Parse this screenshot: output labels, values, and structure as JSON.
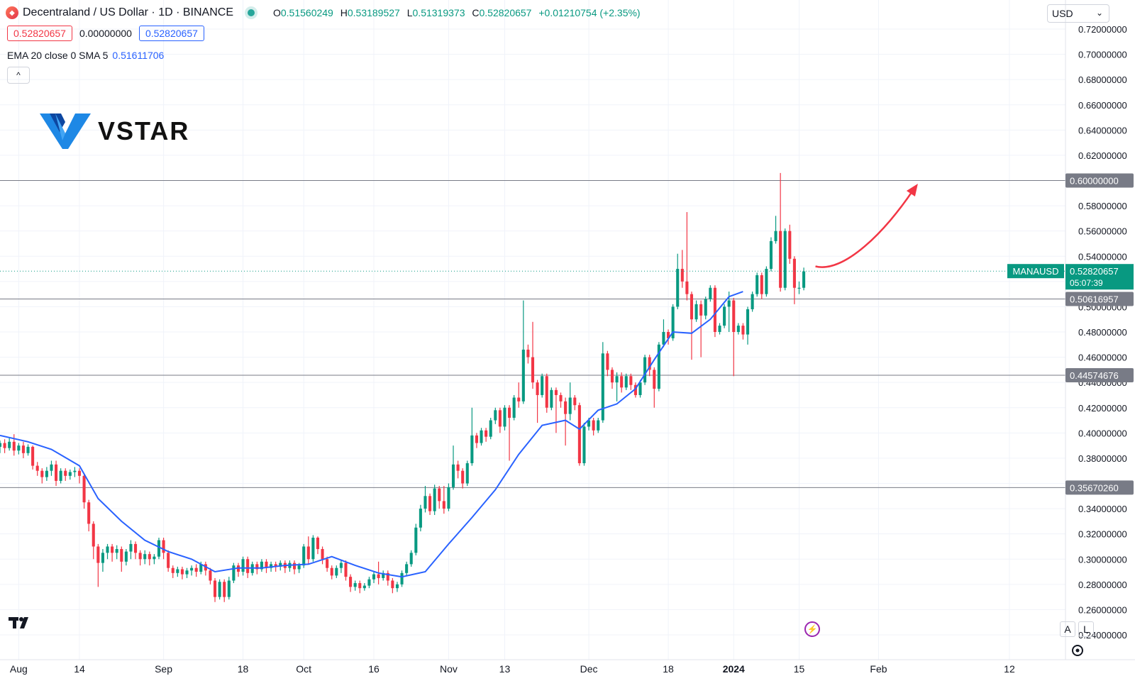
{
  "header": {
    "symbol_title": "Decentraland / US Dollar · 1D · BINANCE",
    "open_label": "O",
    "open": "0.51560249",
    "high_label": "H",
    "high": "0.53189527",
    "low_label": "L",
    "low": "0.51319373",
    "close_label": "C",
    "close": "0.52820657",
    "change": "+0.01210754 (+2.35%)",
    "bid": "0.52820657",
    "spread": "0.00000000",
    "ask": "0.52820657",
    "indicator_label": "EMA 20 close 0 SMA 5",
    "indicator_value": "0.51611706",
    "collapse_glyph": "^"
  },
  "logo": {
    "text": "VSTAR"
  },
  "currency_select": {
    "value": "USD"
  },
  "price_tag": {
    "symbol": "MANAUSD",
    "price": "0.52820657",
    "countdown": "05:07:39"
  },
  "scale_buttons": {
    "auto": "A",
    "log": "L"
  },
  "colors": {
    "up": "#089981",
    "down": "#f23645",
    "ema": "#2962ff",
    "level_line": "#787b86",
    "arrow": "#f23645"
  },
  "chart_data": {
    "type": "candlestick",
    "interval": "1D",
    "y_ticks": [
      "0.72000000",
      "0.70000000",
      "0.68000000",
      "0.66000000",
      "0.64000000",
      "0.62000000",
      "0.60000000",
      "0.58000000",
      "0.56000000",
      "0.54000000",
      "0.52000000",
      "0.50000000",
      "0.48000000",
      "0.46000000",
      "0.44000000",
      "0.42000000",
      "0.40000000",
      "0.38000000",
      "0.36000000",
      "0.34000000",
      "0.32000000",
      "0.30000000",
      "0.28000000",
      "0.26000000",
      "0.24000000"
    ],
    "ylim": [
      0.234,
      0.723
    ],
    "x_ticks": [
      {
        "label": "Aug",
        "day": -2
      },
      {
        "label": "14",
        "day": 11
      },
      {
        "label": "Sep",
        "day": 29
      },
      {
        "label": "18",
        "day": 46
      },
      {
        "label": "Oct",
        "day": 59
      },
      {
        "label": "16",
        "day": 74
      },
      {
        "label": "Nov",
        "day": 90
      },
      {
        "label": "13",
        "day": 102
      },
      {
        "label": "Dec",
        "day": 120
      },
      {
        "label": "18",
        "day": 137
      },
      {
        "label": "2024",
        "day": 151
      },
      {
        "label": "15",
        "day": 165
      },
      {
        "label": "Feb",
        "day": 182
      },
      {
        "label": "12",
        "day": 210
      }
    ],
    "xlim": [
      -6,
      222
    ],
    "horizontal_levels": [
      "0.60000000",
      "0.50616957",
      "0.44574676",
      "0.35670260"
    ],
    "ema_20": [
      [
        -6,
        0.398
      ],
      [
        0,
        0.393
      ],
      [
        5,
        0.387
      ],
      [
        11,
        0.374
      ],
      [
        15,
        0.348
      ],
      [
        20,
        0.33
      ],
      [
        25,
        0.315
      ],
      [
        30,
        0.306
      ],
      [
        35,
        0.3
      ],
      [
        40,
        0.29
      ],
      [
        45,
        0.293
      ],
      [
        50,
        0.293
      ],
      [
        55,
        0.295
      ],
      [
        60,
        0.296
      ],
      [
        65,
        0.302
      ],
      [
        70,
        0.295
      ],
      [
        75,
        0.289
      ],
      [
        80,
        0.286
      ],
      [
        85,
        0.29
      ],
      [
        90,
        0.312
      ],
      [
        95,
        0.333
      ],
      [
        100,
        0.355
      ],
      [
        105,
        0.383
      ],
      [
        110,
        0.406
      ],
      [
        115,
        0.41
      ],
      [
        118,
        0.403
      ],
      [
        122,
        0.418
      ],
      [
        126,
        0.423
      ],
      [
        130,
        0.435
      ],
      [
        134,
        0.458
      ],
      [
        138,
        0.48
      ],
      [
        142,
        0.479
      ],
      [
        146,
        0.49
      ],
      [
        150,
        0.508
      ],
      [
        153,
        0.512
      ]
    ],
    "candles": [
      [
        -6,
        0.389,
        0.392,
        0.384,
        0.394
      ],
      [
        -5,
        0.392,
        0.388,
        0.384,
        0.395
      ],
      [
        -4,
        0.388,
        0.393,
        0.386,
        0.396
      ],
      [
        -3,
        0.393,
        0.386,
        0.382,
        0.399
      ],
      [
        -2,
        0.386,
        0.39,
        0.383,
        0.392
      ],
      [
        -1,
        0.39,
        0.384,
        0.38,
        0.393
      ],
      [
        0,
        0.384,
        0.389,
        0.382,
        0.391
      ],
      [
        1,
        0.389,
        0.374,
        0.371,
        0.39
      ],
      [
        2,
        0.374,
        0.37,
        0.366,
        0.377
      ],
      [
        3,
        0.37,
        0.365,
        0.36,
        0.372
      ],
      [
        4,
        0.365,
        0.37,
        0.362,
        0.373
      ],
      [
        5,
        0.37,
        0.375,
        0.366,
        0.378
      ],
      [
        6,
        0.375,
        0.362,
        0.358,
        0.378
      ],
      [
        7,
        0.362,
        0.37,
        0.36,
        0.372
      ],
      [
        8,
        0.37,
        0.366,
        0.362,
        0.372
      ],
      [
        9,
        0.366,
        0.369,
        0.363,
        0.371
      ],
      [
        10,
        0.369,
        0.37,
        0.365,
        0.373
      ],
      [
        11,
        0.37,
        0.366,
        0.36,
        0.372
      ],
      [
        12,
        0.366,
        0.345,
        0.34,
        0.368
      ],
      [
        13,
        0.345,
        0.328,
        0.322,
        0.347
      ],
      [
        14,
        0.328,
        0.31,
        0.3,
        0.33
      ],
      [
        15,
        0.31,
        0.297,
        0.278,
        0.312
      ],
      [
        16,
        0.297,
        0.305,
        0.29,
        0.308
      ],
      [
        17,
        0.305,
        0.31,
        0.3,
        0.312
      ],
      [
        18,
        0.31,
        0.305,
        0.298,
        0.312
      ],
      [
        19,
        0.305,
        0.308,
        0.3,
        0.311
      ],
      [
        20,
        0.308,
        0.298,
        0.29,
        0.31
      ],
      [
        21,
        0.298,
        0.306,
        0.295,
        0.308
      ],
      [
        22,
        0.306,
        0.312,
        0.3,
        0.315
      ],
      [
        23,
        0.312,
        0.305,
        0.3,
        0.314
      ],
      [
        24,
        0.305,
        0.3,
        0.295,
        0.307
      ],
      [
        25,
        0.3,
        0.304,
        0.296,
        0.307
      ],
      [
        26,
        0.304,
        0.3,
        0.295,
        0.306
      ],
      [
        27,
        0.3,
        0.302,
        0.296,
        0.304
      ],
      [
        28,
        0.302,
        0.315,
        0.3,
        0.317
      ],
      [
        29,
        0.315,
        0.305,
        0.3,
        0.317
      ],
      [
        30,
        0.305,
        0.293,
        0.29,
        0.307
      ],
      [
        31,
        0.293,
        0.289,
        0.285,
        0.295
      ],
      [
        32,
        0.289,
        0.292,
        0.286,
        0.294
      ],
      [
        33,
        0.292,
        0.288,
        0.284,
        0.294
      ],
      [
        34,
        0.288,
        0.291,
        0.285,
        0.293
      ],
      [
        35,
        0.291,
        0.293,
        0.287,
        0.295
      ],
      [
        36,
        0.293,
        0.29,
        0.286,
        0.296
      ],
      [
        37,
        0.29,
        0.296,
        0.288,
        0.298
      ],
      [
        38,
        0.296,
        0.291,
        0.287,
        0.298
      ],
      [
        39,
        0.291,
        0.283,
        0.28,
        0.293
      ],
      [
        40,
        0.283,
        0.27,
        0.266,
        0.285
      ],
      [
        41,
        0.27,
        0.282,
        0.268,
        0.284
      ],
      [
        42,
        0.282,
        0.27,
        0.266,
        0.284
      ],
      [
        43,
        0.27,
        0.283,
        0.268,
        0.286
      ],
      [
        44,
        0.283,
        0.295,
        0.281,
        0.297
      ],
      [
        45,
        0.295,
        0.29,
        0.286,
        0.297
      ],
      [
        46,
        0.29,
        0.3,
        0.287,
        0.302
      ],
      [
        47,
        0.3,
        0.289,
        0.285,
        0.302
      ],
      [
        48,
        0.289,
        0.296,
        0.287,
        0.298
      ],
      [
        49,
        0.296,
        0.292,
        0.288,
        0.298
      ],
      [
        50,
        0.292,
        0.298,
        0.29,
        0.3
      ],
      [
        51,
        0.298,
        0.293,
        0.289,
        0.3
      ],
      [
        52,
        0.293,
        0.296,
        0.29,
        0.298
      ],
      [
        53,
        0.296,
        0.294,
        0.29,
        0.298
      ],
      [
        54,
        0.294,
        0.297,
        0.291,
        0.299
      ],
      [
        55,
        0.297,
        0.293,
        0.289,
        0.299
      ],
      [
        56,
        0.293,
        0.297,
        0.29,
        0.299
      ],
      [
        57,
        0.297,
        0.292,
        0.288,
        0.299
      ],
      [
        58,
        0.292,
        0.295,
        0.289,
        0.297
      ],
      [
        59,
        0.295,
        0.31,
        0.293,
        0.312
      ],
      [
        60,
        0.31,
        0.3,
        0.296,
        0.318
      ],
      [
        61,
        0.3,
        0.317,
        0.298,
        0.319
      ],
      [
        62,
        0.317,
        0.308,
        0.304,
        0.318
      ],
      [
        63,
        0.308,
        0.3,
        0.296,
        0.31
      ],
      [
        64,
        0.3,
        0.293,
        0.29,
        0.302
      ],
      [
        65,
        0.293,
        0.287,
        0.284,
        0.295
      ],
      [
        66,
        0.287,
        0.293,
        0.285,
        0.295
      ],
      [
        67,
        0.293,
        0.297,
        0.289,
        0.299
      ],
      [
        68,
        0.297,
        0.286,
        0.283,
        0.299
      ],
      [
        69,
        0.286,
        0.278,
        0.274,
        0.288
      ],
      [
        70,
        0.278,
        0.281,
        0.275,
        0.283
      ],
      [
        71,
        0.281,
        0.277,
        0.273,
        0.283
      ],
      [
        72,
        0.277,
        0.279,
        0.275,
        0.281
      ],
      [
        73,
        0.279,
        0.284,
        0.277,
        0.286
      ],
      [
        74,
        0.284,
        0.288,
        0.281,
        0.29
      ],
      [
        75,
        0.288,
        0.285,
        0.28,
        0.298
      ],
      [
        76,
        0.285,
        0.289,
        0.283,
        0.291
      ],
      [
        77,
        0.289,
        0.283,
        0.279,
        0.291
      ],
      [
        78,
        0.283,
        0.277,
        0.273,
        0.285
      ],
      [
        79,
        0.277,
        0.28,
        0.274,
        0.282
      ],
      [
        80,
        0.28,
        0.289,
        0.278,
        0.291
      ],
      [
        81,
        0.289,
        0.296,
        0.287,
        0.298
      ],
      [
        82,
        0.296,
        0.305,
        0.294,
        0.307
      ],
      [
        83,
        0.305,
        0.325,
        0.303,
        0.328
      ],
      [
        84,
        0.325,
        0.34,
        0.322,
        0.343
      ],
      [
        85,
        0.34,
        0.35,
        0.337,
        0.358
      ],
      [
        86,
        0.35,
        0.338,
        0.335,
        0.352
      ],
      [
        87,
        0.338,
        0.356,
        0.335,
        0.359
      ],
      [
        88,
        0.356,
        0.346,
        0.34,
        0.358
      ],
      [
        89,
        0.346,
        0.34,
        0.336,
        0.358
      ],
      [
        90,
        0.34,
        0.357,
        0.338,
        0.36
      ],
      [
        91,
        0.357,
        0.375,
        0.355,
        0.39
      ],
      [
        92,
        0.375,
        0.37,
        0.364,
        0.378
      ],
      [
        93,
        0.37,
        0.36,
        0.356,
        0.372
      ],
      [
        94,
        0.36,
        0.376,
        0.358,
        0.378
      ],
      [
        95,
        0.376,
        0.398,
        0.374,
        0.42
      ],
      [
        96,
        0.398,
        0.392,
        0.388,
        0.4
      ],
      [
        97,
        0.392,
        0.402,
        0.39,
        0.404
      ],
      [
        98,
        0.402,
        0.397,
        0.393,
        0.404
      ],
      [
        99,
        0.397,
        0.41,
        0.395,
        0.412
      ],
      [
        100,
        0.41,
        0.418,
        0.407,
        0.42
      ],
      [
        101,
        0.418,
        0.405,
        0.4,
        0.42
      ],
      [
        102,
        0.405,
        0.42,
        0.402,
        0.422
      ],
      [
        103,
        0.42,
        0.412,
        0.378,
        0.422
      ],
      [
        104,
        0.412,
        0.428,
        0.41,
        0.43
      ],
      [
        105,
        0.428,
        0.425,
        0.42,
        0.44
      ],
      [
        106,
        0.425,
        0.466,
        0.423,
        0.505
      ],
      [
        107,
        0.466,
        0.46,
        0.455,
        0.47
      ],
      [
        108,
        0.46,
        0.44,
        0.435,
        0.488
      ],
      [
        109,
        0.44,
        0.43,
        0.408,
        0.442
      ],
      [
        110,
        0.43,
        0.445,
        0.428,
        0.447
      ],
      [
        111,
        0.445,
        0.42,
        0.416,
        0.447
      ],
      [
        112,
        0.42,
        0.434,
        0.418,
        0.436
      ],
      [
        113,
        0.434,
        0.43,
        0.4,
        0.436
      ],
      [
        114,
        0.43,
        0.425,
        0.42,
        0.432
      ],
      [
        115,
        0.425,
        0.415,
        0.39,
        0.428
      ],
      [
        116,
        0.415,
        0.428,
        0.41,
        0.44
      ],
      [
        117,
        0.428,
        0.422,
        0.418,
        0.43
      ],
      [
        118,
        0.422,
        0.376,
        0.374,
        0.424
      ],
      [
        119,
        0.376,
        0.405,
        0.374,
        0.408
      ],
      [
        120,
        0.405,
        0.41,
        0.402,
        0.412
      ],
      [
        121,
        0.41,
        0.402,
        0.398,
        0.412
      ],
      [
        122,
        0.402,
        0.41,
        0.4,
        0.412
      ],
      [
        123,
        0.41,
        0.463,
        0.408,
        0.472
      ],
      [
        124,
        0.463,
        0.45,
        0.445,
        0.465
      ],
      [
        125,
        0.45,
        0.44,
        0.435,
        0.452
      ],
      [
        126,
        0.44,
        0.445,
        0.425,
        0.448
      ],
      [
        127,
        0.445,
        0.436,
        0.432,
        0.448
      ],
      [
        128,
        0.436,
        0.445,
        0.434,
        0.447
      ],
      [
        129,
        0.445,
        0.438,
        0.434,
        0.447
      ],
      [
        130,
        0.438,
        0.43,
        0.428,
        0.44
      ],
      [
        131,
        0.43,
        0.44,
        0.428,
        0.442
      ],
      [
        132,
        0.44,
        0.46,
        0.438,
        0.462
      ],
      [
        133,
        0.46,
        0.45,
        0.445,
        0.462
      ],
      [
        134,
        0.45,
        0.435,
        0.42,
        0.452
      ],
      [
        135,
        0.435,
        0.47,
        0.433,
        0.472
      ],
      [
        136,
        0.47,
        0.48,
        0.468,
        0.49
      ],
      [
        137,
        0.48,
        0.475,
        0.47,
        0.482
      ],
      [
        138,
        0.475,
        0.5,
        0.473,
        0.502
      ],
      [
        139,
        0.5,
        0.53,
        0.498,
        0.542
      ],
      [
        140,
        0.53,
        0.52,
        0.515,
        0.545
      ],
      [
        141,
        0.52,
        0.51,
        0.505,
        0.575
      ],
      [
        142,
        0.51,
        0.49,
        0.458,
        0.512
      ],
      [
        143,
        0.49,
        0.502,
        0.488,
        0.505
      ],
      [
        144,
        0.502,
        0.493,
        0.46,
        0.505
      ],
      [
        145,
        0.493,
        0.506,
        0.49,
        0.508
      ],
      [
        146,
        0.506,
        0.515,
        0.504,
        0.517
      ],
      [
        147,
        0.515,
        0.48,
        0.476,
        0.517
      ],
      [
        148,
        0.48,
        0.485,
        0.478,
        0.487
      ],
      [
        149,
        0.485,
        0.5,
        0.483,
        0.502
      ],
      [
        150,
        0.5,
        0.505,
        0.48,
        0.512
      ],
      [
        151,
        0.505,
        0.48,
        0.445,
        0.507
      ],
      [
        152,
        0.48,
        0.485,
        0.478,
        0.487
      ],
      [
        153,
        0.485,
        0.478,
        0.474,
        0.487
      ],
      [
        154,
        0.478,
        0.498,
        0.47,
        0.5
      ],
      [
        155,
        0.498,
        0.51,
        0.496,
        0.512
      ],
      [
        156,
        0.51,
        0.525,
        0.508,
        0.527
      ],
      [
        157,
        0.525,
        0.51,
        0.506,
        0.527
      ],
      [
        158,
        0.51,
        0.53,
        0.508,
        0.532
      ],
      [
        159,
        0.53,
        0.552,
        0.528,
        0.555
      ],
      [
        160,
        0.552,
        0.56,
        0.55,
        0.572
      ],
      [
        161,
        0.56,
        0.515,
        0.512,
        0.606
      ],
      [
        162,
        0.515,
        0.56,
        0.513,
        0.562
      ],
      [
        163,
        0.56,
        0.538,
        0.534,
        0.565
      ],
      [
        164,
        0.538,
        0.515,
        0.502,
        0.54
      ],
      [
        165,
        0.515,
        0.515,
        0.51,
        0.52
      ],
      [
        166,
        0.515,
        0.528,
        0.513,
        0.531
      ]
    ]
  }
}
